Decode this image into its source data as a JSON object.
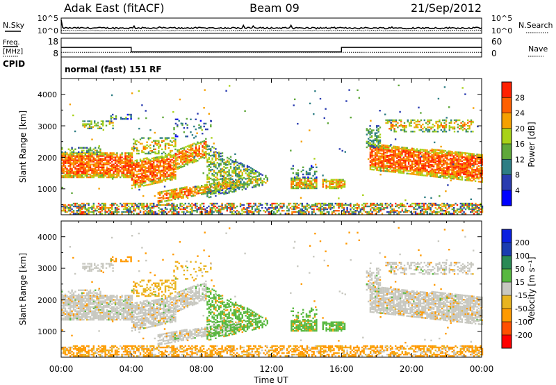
{
  "header": {
    "title": "Adak East (fitACF)",
    "beam": "Beam 09",
    "date": "21/Sep/2012"
  },
  "chart_data": [
    {
      "type": "line",
      "panel": "noise",
      "ylabel_left": "N.Sky",
      "ylabel_right": "N.Search",
      "y_ticks_left": [
        "10^5",
        "10^0"
      ],
      "y_ticks_right": [
        "10^5",
        "10^0"
      ],
      "ylim_log10": [
        0,
        5
      ]
    },
    {
      "type": "line",
      "panel": "frequency",
      "ylabel_left": "Freq.",
      "ylabel_left_unit": "[MHz]",
      "ylabel_right": "Nave",
      "y_ticks_left": [
        "18",
        "8"
      ],
      "y_ticks_right": [
        "60",
        "0"
      ],
      "ylim_left": [
        8,
        18
      ],
      "ylim_right": [
        0,
        60
      ],
      "series": [
        {
          "name": "Freq.",
          "x": [
            0,
            4,
            4,
            16,
            16,
            24
          ],
          "values": [
            13.1,
            13.1,
            10.7,
            10.7,
            13.1,
            13.1
          ]
        },
        {
          "name": "Nave",
          "x": [
            0,
            24
          ],
          "values": [
            15,
            15
          ]
        }
      ]
    },
    {
      "type": "text",
      "panel": "cpid",
      "label": "CPID",
      "mode": "normal (fast) 151 RF"
    },
    {
      "type": "heatmap",
      "panel": "power",
      "ylabel": "Slant Range [km]",
      "y_ticks": [
        "4000",
        "3000",
        "2000",
        "1000"
      ],
      "ylim": [
        180,
        4500
      ],
      "colorbar_label": "Power [dB]",
      "colorbar_ticks": [
        "28",
        "24",
        "20",
        "16",
        "12",
        "8",
        "4"
      ],
      "colorbar_range": [
        0,
        32
      ],
      "colors": [
        "#0000ff",
        "#2a3cb0",
        "#2e7e84",
        "#5fa83a",
        "#a8d218",
        "#f5a000",
        "#ff6000",
        "#ff2000"
      ]
    },
    {
      "type": "heatmap",
      "panel": "velocity",
      "ylabel": "Slant Range [km]",
      "y_ticks": [
        "4000",
        "3000",
        "2000",
        "1000"
      ],
      "ylim": [
        180,
        4500
      ],
      "colorbar_label": "Velocity [m s⁻¹]",
      "colorbar_ticks": [
        "200",
        "100",
        "50",
        "15",
        "-15",
        "-50",
        "-100",
        "-200"
      ],
      "colors": [
        "#ff0000",
        "#ff5000",
        "#ff9a00",
        "#e8b420",
        "#c8c8c0",
        "#58b840",
        "#2a8a55",
        "#1a3cb0",
        "#0a20e0"
      ]
    },
    {
      "type": "axis",
      "xlabel": "Time UT",
      "x_ticks": [
        "00:00",
        "04:00",
        "08:00",
        "12:00",
        "16:00",
        "20:00",
        "00:00"
      ],
      "xlim_hours": [
        0,
        24
      ]
    }
  ]
}
